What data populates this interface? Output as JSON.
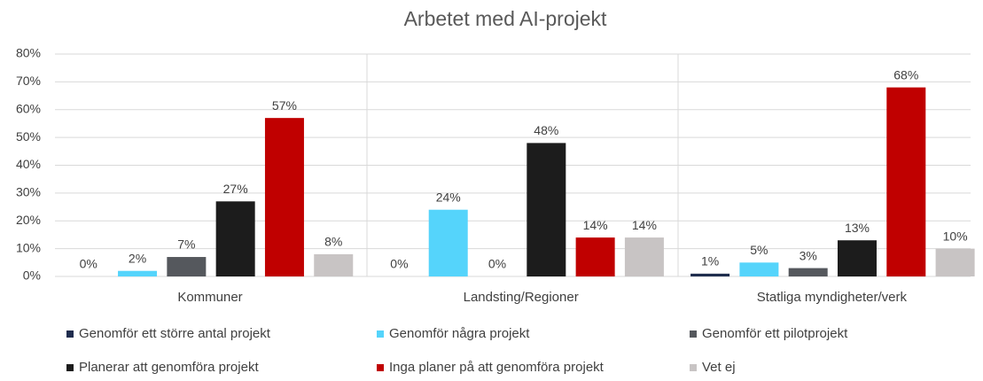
{
  "chart_data": {
    "type": "bar",
    "title": "Arbetet med AI-projekt",
    "categories": [
      "Kommuner",
      "Landsting/Regioner",
      "Statliga myndigheter/verk"
    ],
    "series": [
      {
        "name": "Genomför ett större antal projekt",
        "color": "#1f2d4e",
        "values": [
          0,
          0,
          1
        ],
        "value_labels": [
          "0%",
          "0%",
          "1%"
        ]
      },
      {
        "name": "Genomför några projekt",
        "color": "#55d4fb",
        "values": [
          2,
          24,
          5
        ],
        "value_labels": [
          "2%",
          "24%",
          "5%"
        ]
      },
      {
        "name": "Genomför ett pilotprojekt",
        "color": "#55585d",
        "values": [
          7,
          0,
          3
        ],
        "value_labels": [
          "7%",
          "0%",
          "3%"
        ]
      },
      {
        "name": "Planerar att genomföra projekt",
        "color": "#1c1c1c",
        "values": [
          27,
          48,
          13
        ],
        "value_labels": [
          "27%",
          "48%",
          "13%"
        ]
      },
      {
        "name": "Inga planer på att genomföra projekt",
        "color": "#c00000",
        "values": [
          57,
          14,
          68
        ],
        "value_labels": [
          "57%",
          "14%",
          "68%"
        ]
      },
      {
        "name": "Vet ej",
        "color": "#c8c4c4",
        "values": [
          8,
          14,
          10
        ],
        "value_labels": [
          "8%",
          "14%",
          "10%"
        ]
      }
    ],
    "ylim": [
      0,
      80
    ],
    "yticks": [
      {
        "value": 0,
        "label": "0%"
      },
      {
        "value": 10,
        "label": "10%"
      },
      {
        "value": 20,
        "label": "20%"
      },
      {
        "value": 30,
        "label": "30%"
      },
      {
        "value": 40,
        "label": "40%"
      },
      {
        "value": 50,
        "label": "50%"
      },
      {
        "value": 60,
        "label": "60%"
      },
      {
        "value": 70,
        "label": "70%"
      },
      {
        "value": 80,
        "label": "80%"
      }
    ],
    "grid": true,
    "legend": "bottom"
  }
}
